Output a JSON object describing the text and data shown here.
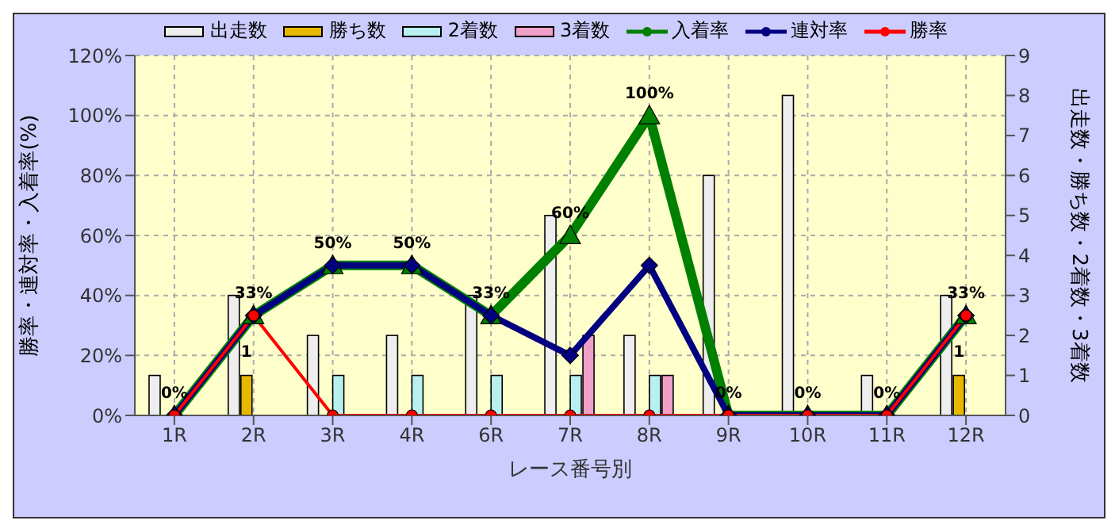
{
  "chart_data": {
    "type": "bar",
    "xlabel": "レース番号別",
    "ylabel": "勝率・連対率・入着率(%)",
    "y2label": "出走数・勝ち数・2着数・3着数",
    "categories": [
      "1R",
      "2R",
      "3R",
      "4R",
      "6R",
      "7R",
      "8R",
      "9R",
      "10R",
      "11R",
      "12R"
    ],
    "series": [
      {
        "name": "出走数",
        "axis": "y2",
        "color": "#eeeeee",
        "values": [
          1,
          3,
          2,
          2,
          3,
          5,
          2,
          6,
          8,
          1,
          3
        ]
      },
      {
        "name": "勝ち数",
        "axis": "y2",
        "color": "#e6b800",
        "values": [
          0,
          1,
          0,
          0,
          0,
          0,
          0,
          0,
          0,
          0,
          1
        ],
        "value_labels": [
          null,
          "1",
          null,
          null,
          null,
          null,
          null,
          null,
          null,
          null,
          "1"
        ]
      },
      {
        "name": "2着数",
        "axis": "y2",
        "color": "#b8f0f0",
        "values": [
          0,
          0,
          1,
          1,
          1,
          1,
          1,
          0,
          0,
          0,
          0
        ]
      },
      {
        "name": "3着数",
        "axis": "y2",
        "color": "#f0a0c8",
        "values": [
          0,
          0,
          0,
          0,
          0,
          2,
          1,
          0,
          0,
          0,
          0
        ]
      },
      {
        "name": "入着率",
        "type": "line",
        "color": "#008000",
        "marker": "triangle",
        "values": [
          0,
          33.3,
          50,
          50,
          33.3,
          60,
          100,
          0,
          0,
          0,
          33.3
        ],
        "value_labels": [
          "0%",
          "33%",
          "50%",
          "50%",
          "33%",
          "60%",
          "100%",
          "0%",
          "0%",
          "0%",
          "33%"
        ]
      },
      {
        "name": "連対率",
        "type": "line",
        "color": "#000080",
        "marker": "diamond",
        "values": [
          0,
          33.3,
          50,
          50,
          33.3,
          20,
          50,
          0,
          0,
          0,
          33.3
        ]
      },
      {
        "name": "勝率",
        "type": "line",
        "color": "#ff0000",
        "marker": "circle",
        "values": [
          0,
          33.3,
          0,
          0,
          0,
          0,
          0,
          0,
          0,
          0,
          33.3
        ]
      }
    ],
    "ylim": [
      0,
      120
    ],
    "yticks": [
      {
        "value": 0,
        "label": "0%"
      },
      {
        "value": 20,
        "label": "20%"
      },
      {
        "value": 40,
        "label": "40%"
      },
      {
        "value": 60,
        "label": "60%"
      },
      {
        "value": 80,
        "label": "80%"
      },
      {
        "value": 100,
        "label": "100%"
      },
      {
        "value": 120,
        "label": "120%"
      }
    ],
    "y2lim": [
      0,
      9
    ],
    "y2ticks": [
      0,
      1,
      2,
      3,
      4,
      5,
      6,
      7,
      8,
      9
    ],
    "grid": true,
    "legend": "top"
  }
}
